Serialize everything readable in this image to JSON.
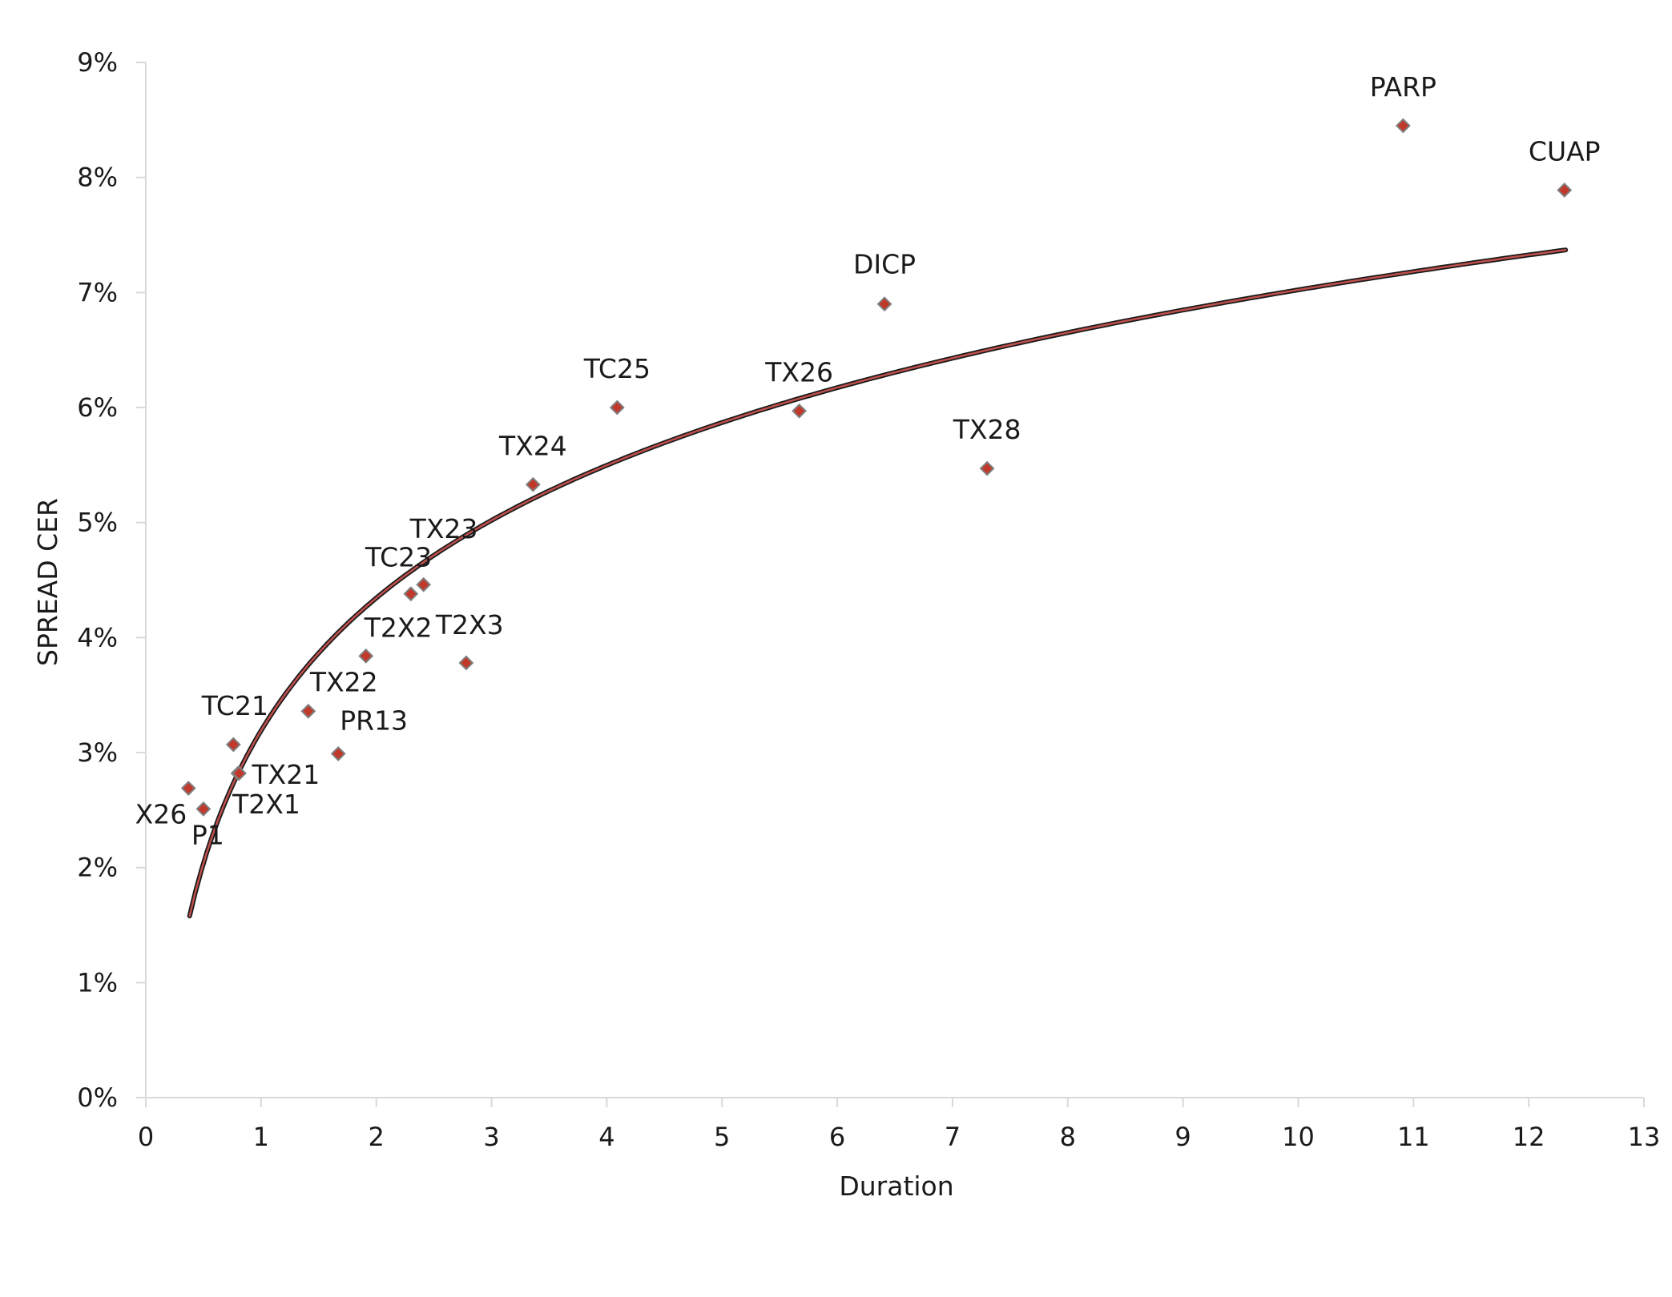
{
  "chart_data": {
    "type": "scatter",
    "title": "",
    "xlabel": "Duration",
    "ylabel": "SPREAD CER",
    "xlim": [
      0,
      13
    ],
    "ylim": [
      0,
      0.09
    ],
    "x_ticks": [
      0,
      1,
      2,
      3,
      4,
      5,
      6,
      7,
      8,
      9,
      10,
      11,
      12,
      13
    ],
    "y_ticks": [
      "0%",
      "1%",
      "2%",
      "3%",
      "4%",
      "5%",
      "6%",
      "7%",
      "8%",
      "9%"
    ],
    "grid": false,
    "legend": "none",
    "colors": {
      "marker_fill": "#c0392b",
      "marker_stroke": "#7f7f7f",
      "trend_outer": "#1a1a1a",
      "trend_inner": "#c0504d",
      "axis": "#d9d9d9"
    },
    "points": [
      {
        "label": "X26",
        "x": 0.37,
        "y": 0.0269
      },
      {
        "label": "P1",
        "x": 0.5,
        "y": 0.0251
      },
      {
        "label": "TC21",
        "x": 0.76,
        "y": 0.0307
      },
      {
        "label": "T2X1",
        "x": 0.8,
        "y": 0.0282
      },
      {
        "label": "TX21",
        "x": 0.81,
        "y": 0.0282
      },
      {
        "label": "TX22",
        "x": 1.41,
        "y": 0.0336
      },
      {
        "label": "PR13",
        "x": 1.67,
        "y": 0.0299
      },
      {
        "label": "T2X2",
        "x": 1.91,
        "y": 0.0384
      },
      {
        "label": "TC23",
        "x": 2.3,
        "y": 0.0438
      },
      {
        "label": "TX23",
        "x": 2.41,
        "y": 0.0446
      },
      {
        "label": "T2X3",
        "x": 2.78,
        "y": 0.0378
      },
      {
        "label": "TX24",
        "x": 3.36,
        "y": 0.0533
      },
      {
        "label": "TC25",
        "x": 4.09,
        "y": 0.06
      },
      {
        "label": "TX26",
        "x": 5.67,
        "y": 0.0597
      },
      {
        "label": "DICP",
        "x": 6.41,
        "y": 0.069
      },
      {
        "label": "TX28",
        "x": 7.3,
        "y": 0.0547
      },
      {
        "label": "PARP",
        "x": 10.91,
        "y": 0.0845
      },
      {
        "label": "CUAP",
        "x": 12.31,
        "y": 0.0789
      }
    ],
    "trendline": {
      "type": "logarithmic",
      "x_range": [
        0.38,
        12.32
      ],
      "start_value": 0.0158,
      "end_value": 0.0737
    }
  }
}
